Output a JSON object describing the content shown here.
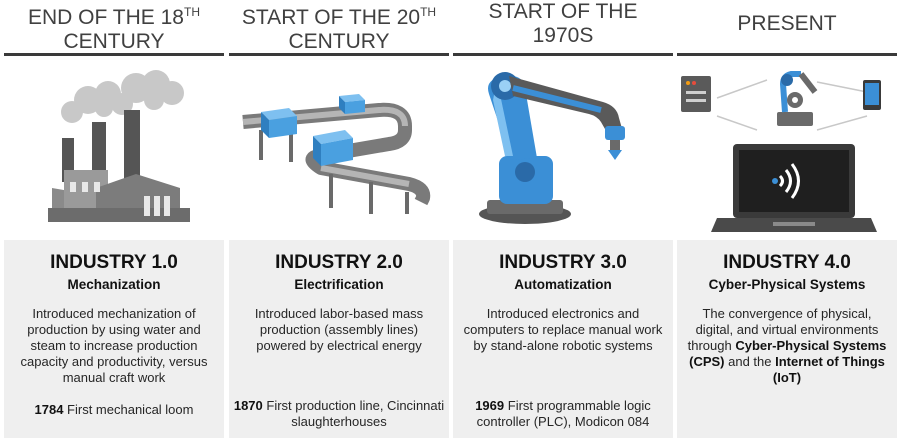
{
  "columns": [
    {
      "era": "END OF THE 18",
      "era_sup": "TH",
      "era_line2": "CENTURY",
      "title": "INDUSTRY 1.0",
      "subtitle": "Mechanization",
      "description": "Introduced mechanization of production by using water and steam to increase production capacity and productivity, versus manual craft work",
      "milestone_year": "1784",
      "milestone_text": "First mechanical loom",
      "icon": "factory-icon"
    },
    {
      "era": "START OF THE 20",
      "era_sup": "TH",
      "era_line2": "CENTURY",
      "title": "INDUSTRY 2.0",
      "subtitle": "Electrification",
      "description": "Introduced labor-based mass production (assembly lines) powered by electrical energy",
      "milestone_year": "1870",
      "milestone_text": "First production line, Cincinnati slaughterhouses",
      "icon": "conveyor-belt-icon"
    },
    {
      "era": "START OF THE",
      "era_line2": "1970S",
      "title": "INDUSTRY 3.0",
      "subtitle": "Automatization",
      "description": "Introduced electronics and computers to replace manual work by stand-alone robotic systems",
      "milestone_year": "1969",
      "milestone_text": "First programmable logic controller (PLC), Modicon 084",
      "icon": "robot-arm-icon"
    },
    {
      "era": "PRESENT",
      "title": "INDUSTRY 4.0",
      "subtitle": "Cyber-Physical Systems",
      "desc_part1": "The convergence of physical, digital, and virtual environments through ",
      "desc_cps": "Cyber-Physical Systems (CPS)",
      "desc_and": " and the ",
      "desc_iot": "Internet of Things (IoT)",
      "icon": "connected-laptop-icon"
    }
  ],
  "colors": {
    "accent_blue": "#3b8fd6",
    "panel_bg": "#efefef",
    "rule": "#3a3a3a",
    "era_text": "#404040"
  }
}
